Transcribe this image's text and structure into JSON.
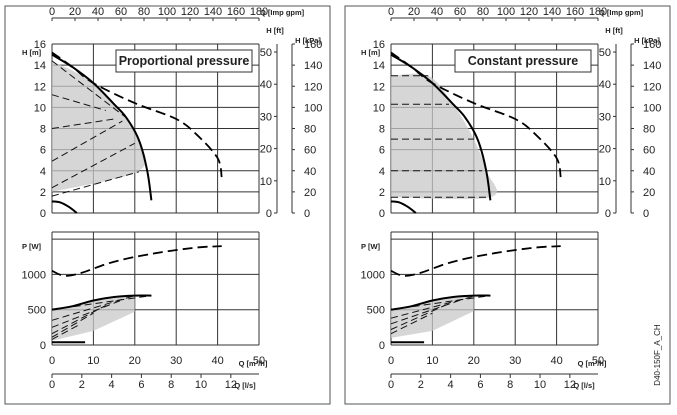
{
  "figure_code": "D40-150F_A_CH",
  "chart_data": [
    {
      "type": "line",
      "title": "Proportional pressure",
      "control_mode": "proportional",
      "units": {
        "q_top": "Q [Imp gpm]",
        "h_m": "H [m]",
        "h_ft": "H [ft]",
        "h_kpa": "H [kPa]",
        "p_w": "P [W]",
        "q_m3h": "Q [m³/h]",
        "q_ls": "Q [l/s]"
      },
      "axes": {
        "q_m3h": {
          "range": [
            0,
            50
          ],
          "ticks": [
            "0",
            "10",
            "20",
            "30",
            "40",
            "50"
          ]
        },
        "q_ls": {
          "range": [
            0,
            12
          ],
          "ticks": [
            "0",
            "2",
            "4",
            "6",
            "8",
            "10",
            "12"
          ]
        },
        "q_gpm": {
          "range": [
            0,
            180
          ],
          "ticks": [
            "0",
            "20",
            "40",
            "60",
            "80",
            "100",
            "120",
            "140",
            "160",
            "180"
          ]
        },
        "h_m": {
          "range": [
            0,
            16
          ],
          "ticks": [
            "0",
            "2",
            "4",
            "6",
            "8",
            "10",
            "12",
            "14",
            "16"
          ]
        },
        "h_ft": {
          "range": [
            0,
            50
          ],
          "ticks": [
            "0",
            "10",
            "20",
            "30",
            "40",
            "50"
          ]
        },
        "h_kpa": {
          "range": [
            0,
            160
          ],
          "ticks": [
            "0",
            "20",
            "40",
            "60",
            "80",
            "100",
            "120",
            "140",
            "160"
          ]
        },
        "p_w": {
          "range": [
            0,
            1600
          ],
          "ticks": [
            "0",
            "500",
            "1000"
          ]
        }
      },
      "grid": true,
      "series": {
        "hq_max": [
          [
            0,
            15
          ],
          [
            5,
            13.8
          ],
          [
            10,
            12.3
          ],
          [
            15,
            10.3
          ],
          [
            18,
            9
          ],
          [
            21,
            6.9
          ],
          [
            23,
            4
          ],
          [
            24,
            1.2
          ]
        ],
        "hq_min": [
          [
            0,
            1.1
          ],
          [
            2,
            1.0
          ],
          [
            4,
            0.6
          ],
          [
            6,
            0
          ]
        ],
        "hq_dash_head": [
          [
            0,
            15.2
          ],
          [
            5,
            13.8
          ],
          [
            10,
            12.3
          ],
          [
            20,
            10.4
          ],
          [
            30,
            8.9
          ],
          [
            35,
            7.4
          ],
          [
            40,
            5.2
          ],
          [
            41,
            3.4
          ]
        ],
        "hq_setpoints": [
          [
            [
              0,
              14.4
            ],
            [
              18,
              9
            ]
          ],
          [
            [
              0,
              11.2
            ],
            [
              13,
              9.7
            ]
          ],
          [
            [
              0,
              8
            ],
            [
              15,
              8.9
            ]
          ],
          [
            [
              0,
              4.9
            ],
            [
              17,
              8.7
            ]
          ],
          [
            [
              0,
              2.4
            ],
            [
              20,
              6.6
            ]
          ],
          [
            [
              0,
              1.6
            ],
            [
              21,
              3.9
            ]
          ]
        ],
        "hq_area": [
          [
            0,
            14.4
          ],
          [
            10,
            12.3
          ],
          [
            18,
            9
          ],
          [
            21,
            6.9
          ],
          [
            21,
            4
          ],
          [
            0,
            2
          ]
        ],
        "p_max_dash": [
          [
            0,
            1050
          ],
          [
            3,
            980
          ],
          [
            7,
            1020
          ],
          [
            15,
            1180
          ],
          [
            25,
            1300
          ],
          [
            35,
            1380
          ],
          [
            41,
            1400
          ]
        ],
        "p_max": [
          [
            0,
            500
          ],
          [
            5,
            550
          ],
          [
            10,
            630
          ],
          [
            15,
            680
          ],
          [
            20,
            700
          ],
          [
            24,
            700
          ]
        ],
        "p_setpoints": [
          [
            [
              0,
              500
            ],
            [
              24,
              700
            ]
          ],
          [
            [
              0,
              350
            ],
            [
              20,
              700
            ]
          ],
          [
            [
              0,
              250
            ],
            [
              17,
              640
            ]
          ],
          [
            [
              0,
              160
            ],
            [
              13,
              560
            ]
          ],
          [
            [
              0,
              110
            ],
            [
              10,
              450
            ]
          ],
          [
            [
              0,
              80
            ],
            [
              7,
              300
            ]
          ]
        ],
        "p_area": [
          [
            0,
            500
          ],
          [
            10,
            630
          ],
          [
            20,
            700
          ],
          [
            20,
            470
          ],
          [
            10,
            200
          ],
          [
            0,
            60
          ]
        ],
        "p_min": [
          [
            0,
            40
          ],
          [
            8,
            40
          ]
        ]
      }
    },
    {
      "type": "line",
      "title": "Constant pressure",
      "control_mode": "constant",
      "units": {
        "q_top": "Q [Imp gpm]",
        "h_m": "H [m]",
        "h_ft": "H [ft]",
        "h_kpa": "H [kPa]",
        "p_w": "P [W]",
        "q_m3h": "Q [m³/h]",
        "q_ls": "Q [l/s]"
      },
      "axes": {
        "q_m3h": {
          "range": [
            0,
            50
          ],
          "ticks": [
            "0",
            "10",
            "20",
            "30",
            "40",
            "50"
          ]
        },
        "q_ls": {
          "range": [
            0,
            12
          ],
          "ticks": [
            "0",
            "2",
            "4",
            "6",
            "8",
            "10",
            "12"
          ]
        },
        "q_gpm": {
          "range": [
            0,
            180
          ],
          "ticks": [
            "0",
            "20",
            "40",
            "60",
            "80",
            "100",
            "120",
            "140",
            "160",
            "180"
          ]
        },
        "h_m": {
          "range": [
            0,
            16
          ],
          "ticks": [
            "0",
            "2",
            "4",
            "6",
            "8",
            "10",
            "12",
            "14",
            "16"
          ]
        },
        "h_ft": {
          "range": [
            0,
            50
          ],
          "ticks": [
            "0",
            "10",
            "20",
            "30",
            "40",
            "50"
          ]
        },
        "h_kpa": {
          "range": [
            0,
            160
          ],
          "ticks": [
            "0",
            "20",
            "40",
            "60",
            "80",
            "100",
            "120",
            "140",
            "160"
          ]
        },
        "p_w": {
          "range": [
            0,
            1600
          ],
          "ticks": [
            "0",
            "500",
            "1000"
          ]
        }
      },
      "grid": true,
      "series": {
        "hq_max": [
          [
            0,
            15
          ],
          [
            5,
            13.8
          ],
          [
            10,
            12.3
          ],
          [
            15,
            10.3
          ],
          [
            18,
            9
          ],
          [
            21,
            6.9
          ],
          [
            23,
            4
          ],
          [
            24,
            1.2
          ]
        ],
        "hq_min": [
          [
            0,
            1.1
          ],
          [
            2,
            1.0
          ],
          [
            4,
            0.6
          ],
          [
            6,
            0
          ]
        ],
        "hq_dash_head": [
          [
            0,
            15.2
          ],
          [
            5,
            13.8
          ],
          [
            10,
            12.3
          ],
          [
            20,
            10.4
          ],
          [
            30,
            8.9
          ],
          [
            35,
            7.4
          ],
          [
            40,
            5.2
          ],
          [
            41,
            3.4
          ]
        ],
        "hq_setpoints": [
          [
            [
              0,
              13
            ],
            [
              9,
              13
            ]
          ],
          [
            [
              0,
              10.3
            ],
            [
              14,
              10.3
            ]
          ],
          [
            [
              0,
              7
            ],
            [
              20,
              7
            ]
          ],
          [
            [
              0,
              4
            ],
            [
              22,
              4
            ]
          ],
          [
            [
              0,
              1.5
            ],
            [
              24,
              1.5
            ]
          ]
        ],
        "hq_area": [
          [
            0,
            13
          ],
          [
            9,
            13
          ],
          [
            15,
            10.3
          ],
          [
            20,
            7
          ],
          [
            23,
            4
          ],
          [
            24,
            1.5
          ],
          [
            0,
            1.5
          ]
        ],
        "p_max_dash": [
          [
            0,
            1050
          ],
          [
            3,
            980
          ],
          [
            7,
            1020
          ],
          [
            15,
            1180
          ],
          [
            25,
            1300
          ],
          [
            35,
            1380
          ],
          [
            41,
            1400
          ]
        ],
        "p_max": [
          [
            0,
            500
          ],
          [
            5,
            550
          ],
          [
            10,
            630
          ],
          [
            15,
            680
          ],
          [
            20,
            700
          ],
          [
            24,
            700
          ]
        ],
        "p_setpoints": [
          [
            [
              0,
              500
            ],
            [
              24,
              700
            ]
          ],
          [
            [
              0,
              380
            ],
            [
              20,
              690
            ]
          ],
          [
            [
              0,
              300
            ],
            [
              17,
              640
            ]
          ],
          [
            [
              0,
              220
            ],
            [
              13,
              560
            ]
          ],
          [
            [
              0,
              160
            ],
            [
              10,
              450
            ]
          ]
        ],
        "p_area": [
          [
            0,
            500
          ],
          [
            10,
            630
          ],
          [
            20,
            700
          ],
          [
            20,
            480
          ],
          [
            10,
            200
          ],
          [
            0,
            100
          ]
        ],
        "p_min": [
          [
            0,
            40
          ],
          [
            8,
            40
          ]
        ]
      }
    }
  ]
}
